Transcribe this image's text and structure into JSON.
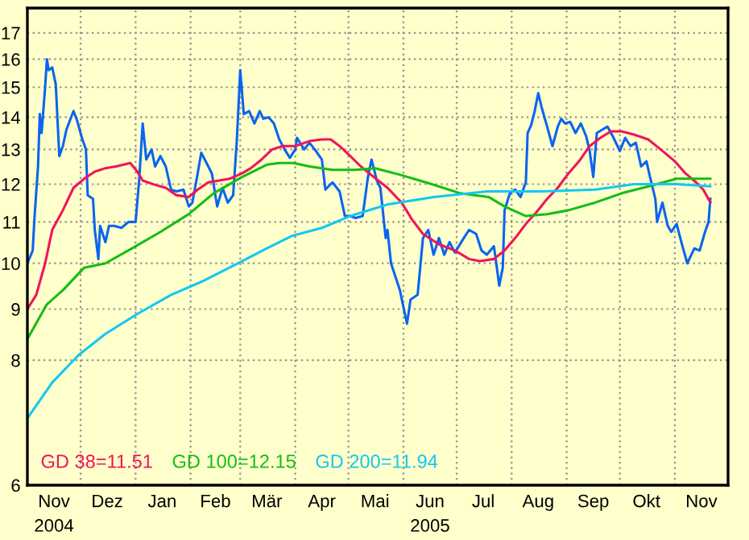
{
  "chart_data": {
    "type": "line",
    "log": "y",
    "ylim": [
      6,
      18
    ],
    "yticks": [
      6,
      8,
      9,
      10,
      11,
      12,
      13,
      14,
      15,
      16,
      17
    ],
    "xlim": [
      "2004-11-01",
      "2005-12-01"
    ],
    "xticks": [
      {
        "value": "2004-12-01",
        "label": null
      },
      {
        "value": "2005-01-01",
        "label": null
      },
      {
        "value": "2005-02-01",
        "label": null
      },
      {
        "value": "2005-03-01",
        "label": null
      },
      {
        "value": "2005-04-01",
        "label": null
      },
      {
        "value": "2005-05-01",
        "label": null
      },
      {
        "value": "2005-06-01",
        "label": null
      },
      {
        "value": "2005-07-01",
        "label": null
      },
      {
        "value": "2005-08-01",
        "label": null
      },
      {
        "value": "2005-09-01",
        "label": null
      },
      {
        "value": "2005-10-01",
        "label": null
      },
      {
        "value": "2005-11-01",
        "label": null
      },
      {
        "value": "2004-11-16",
        "label": "Nov\n2004"
      },
      {
        "value": "2004-12-16",
        "label": "Dez"
      },
      {
        "value": "2005-01-16",
        "label": "Jan"
      },
      {
        "value": "2005-02-15",
        "label": "Feb"
      },
      {
        "value": "2005-03-16",
        "label": "Mär"
      },
      {
        "value": "2005-04-16",
        "label": "Apr"
      },
      {
        "value": "2005-05-16",
        "label": "Mai"
      },
      {
        "value": "2005-06-16",
        "label": "Jun\n2005"
      },
      {
        "value": "2005-07-16",
        "label": "Jul"
      },
      {
        "value": "2005-08-16",
        "label": "Aug"
      },
      {
        "value": "2005-09-16",
        "label": "Sep"
      },
      {
        "value": "2005-10-16",
        "label": "Okt"
      },
      {
        "value": "2005-11-16",
        "label": "Nov"
      }
    ],
    "grid": true,
    "legend": "bottom left",
    "marker": "none",
    "line_style": "solid",
    "series": [
      {
        "color": "#0a64f0",
        "x": [
          "2004-11-01",
          "2004-11-04",
          "2004-11-05",
          "2004-11-07",
          "2004-11-08",
          "2004-11-09",
          "2004-11-11",
          "2004-11-12",
          "2004-11-13",
          "2004-11-15",
          "2004-11-17",
          "2004-11-19",
          "2004-11-21",
          "2004-11-23",
          "2004-11-25",
          "2004-11-27",
          "2004-11-29",
          "2004-12-02",
          "2004-12-04",
          "2004-12-05",
          "2004-12-08",
          "2004-12-09",
          "2004-12-11",
          "2004-12-12",
          "2004-12-15",
          "2004-12-17",
          "2004-12-20",
          "2004-12-24",
          "2004-12-28",
          "2005-01-01",
          "2005-01-03",
          "2005-01-05",
          "2005-01-07",
          "2005-01-10",
          "2005-01-12",
          "2005-01-15",
          "2005-01-18",
          "2005-01-21",
          "2005-01-24",
          "2005-01-28",
          "2005-01-31",
          "2005-02-02",
          "2005-02-05",
          "2005-02-07",
          "2005-02-10",
          "2005-02-13",
          "2005-02-16",
          "2005-02-19",
          "2005-02-22",
          "2005-02-25",
          "2005-02-27",
          "2005-03-01",
          "2005-03-03",
          "2005-03-06",
          "2005-03-09",
          "2005-03-12",
          "2005-03-14",
          "2005-03-17",
          "2005-03-20",
          "2005-03-23",
          "2005-03-26",
          "2005-03-29",
          "2005-04-01",
          "2005-04-02",
          "2005-04-06",
          "2005-04-09",
          "2005-04-12",
          "2005-04-16",
          "2005-04-18",
          "2005-04-22",
          "2005-04-26",
          "2005-04-29",
          "2005-05-02",
          "2005-05-05",
          "2005-05-09",
          "2005-05-12",
          "2005-05-14",
          "2005-05-17",
          "2005-05-19",
          "2005-05-22",
          "2005-05-23",
          "2005-05-25",
          "2005-05-30",
          "2005-06-03",
          "2005-06-05",
          "2005-06-09",
          "2005-06-12",
          "2005-06-15",
          "2005-06-18",
          "2005-06-21",
          "2005-06-24",
          "2005-06-27",
          "2005-06-30",
          "2005-07-05",
          "2005-07-08",
          "2005-07-12",
          "2005-07-15",
          "2005-07-18",
          "2005-07-22",
          "2005-07-23",
          "2005-07-25",
          "2005-07-27",
          "2005-07-28",
          "2005-07-31",
          "2005-08-03",
          "2005-08-06",
          "2005-08-09",
          "2005-08-10",
          "2005-08-12",
          "2005-08-14",
          "2005-08-16",
          "2005-08-18",
          "2005-08-21",
          "2005-08-24",
          "2005-08-27",
          "2005-08-29",
          "2005-08-31",
          "2005-09-03",
          "2005-09-06",
          "2005-09-09",
          "2005-09-12",
          "2005-09-14",
          "2005-09-16",
          "2005-09-18",
          "2005-09-21",
          "2005-09-24",
          "2005-09-27",
          "2005-10-01",
          "2005-10-04",
          "2005-10-07",
          "2005-10-10",
          "2005-10-13",
          "2005-10-16",
          "2005-10-18",
          "2005-10-21",
          "2005-10-22",
          "2005-10-25",
          "2005-10-28",
          "2005-10-30",
          "2005-11-02",
          "2005-11-05",
          "2005-11-07",
          "2005-11-08",
          "2005-11-12",
          "2005-11-15",
          "2005-11-18",
          "2005-11-20",
          "2005-11-21"
        ],
        "values": [
          10.0,
          10.3,
          11.1,
          12.5,
          14.1,
          13.5,
          15.0,
          16.0,
          15.6,
          15.7,
          15.1,
          12.8,
          13.1,
          13.6,
          13.9,
          14.2,
          13.9,
          13.3,
          13.0,
          11.7,
          11.6,
          10.8,
          10.1,
          10.9,
          10.5,
          10.9,
          10.9,
          10.85,
          11.0,
          11.0,
          12.1,
          13.8,
          12.7,
          13.0,
          12.5,
          12.8,
          12.5,
          11.85,
          11.8,
          11.85,
          11.4,
          11.5,
          12.3,
          12.9,
          12.6,
          12.3,
          11.4,
          11.9,
          11.5,
          11.7,
          13.2,
          15.6,
          14.1,
          14.2,
          13.8,
          14.2,
          13.95,
          14.0,
          13.8,
          13.3,
          13.0,
          12.75,
          13.0,
          13.35,
          13.0,
          13.2,
          13.0,
          12.7,
          11.85,
          12.05,
          11.8,
          11.15,
          11.15,
          11.1,
          11.15,
          12.2,
          12.7,
          12.1,
          11.9,
          10.6,
          10.8,
          10.0,
          9.4,
          8.7,
          9.2,
          9.3,
          10.6,
          10.8,
          10.2,
          10.6,
          10.2,
          10.5,
          10.25,
          10.6,
          10.8,
          10.7,
          10.3,
          10.2,
          10.4,
          10.1,
          9.5,
          9.9,
          11.3,
          11.75,
          11.85,
          11.65,
          12.05,
          13.5,
          13.75,
          14.2,
          14.8,
          14.3,
          13.7,
          13.1,
          13.7,
          13.95,
          13.8,
          13.85,
          13.5,
          13.8,
          13.4,
          12.95,
          12.2,
          13.5,
          13.6,
          13.7,
          13.4,
          12.95,
          13.35,
          13.1,
          13.2,
          12.5,
          12.65,
          12.2,
          11.6,
          11.0,
          11.5,
          10.9,
          10.75,
          10.95,
          10.45,
          10.15,
          10.0,
          10.35,
          10.3,
          10.75,
          11.0,
          11.6
        ]
      },
      {
        "name": "GD 38=11.51",
        "color": "#f0145a",
        "x": [
          "2004-11-01",
          "2004-11-06",
          "2004-11-11",
          "2004-11-15",
          "2004-11-21",
          "2004-11-27",
          "2004-12-03",
          "2004-12-09",
          "2004-12-15",
          "2004-12-21",
          "2004-12-29",
          "2005-01-02",
          "2005-01-05",
          "2005-01-12",
          "2005-01-18",
          "2005-01-24",
          "2005-01-31",
          "2005-02-05",
          "2005-02-11",
          "2005-02-17",
          "2005-02-23",
          "2005-03-02",
          "2005-03-07",
          "2005-03-13",
          "2005-03-19",
          "2005-03-25",
          "2005-04-01",
          "2005-04-09",
          "2005-04-16",
          "2005-04-21",
          "2005-04-26",
          "2005-05-02",
          "2005-05-08",
          "2005-05-14",
          "2005-05-23",
          "2005-05-31",
          "2005-06-06",
          "2005-06-12",
          "2005-06-21",
          "2005-06-30",
          "2005-07-08",
          "2005-07-14",
          "2005-07-22",
          "2005-07-28",
          "2005-08-03",
          "2005-08-09",
          "2005-08-15",
          "2005-08-21",
          "2005-08-27",
          "2005-09-02",
          "2005-09-08",
          "2005-09-14",
          "2005-09-20",
          "2005-09-26",
          "2005-10-02",
          "2005-10-09",
          "2005-10-17",
          "2005-10-24",
          "2005-11-01",
          "2005-11-07",
          "2005-11-13",
          "2005-11-17",
          "2005-11-21"
        ],
        "values": [
          9.0,
          9.3,
          10.0,
          10.8,
          11.3,
          11.9,
          12.15,
          12.35,
          12.45,
          12.5,
          12.6,
          12.35,
          12.1,
          11.98,
          11.9,
          11.7,
          11.65,
          11.85,
          12.05,
          12.1,
          12.15,
          12.3,
          12.45,
          12.7,
          13.0,
          13.1,
          13.1,
          13.25,
          13.3,
          13.3,
          13.1,
          12.8,
          12.5,
          12.25,
          11.9,
          11.5,
          11.05,
          10.7,
          10.45,
          10.3,
          10.1,
          10.05,
          10.1,
          10.3,
          10.6,
          10.95,
          11.25,
          11.6,
          11.9,
          12.3,
          12.65,
          13.1,
          13.35,
          13.55,
          13.55,
          13.45,
          13.3,
          13.0,
          12.65,
          12.3,
          12.05,
          11.85,
          11.51
        ]
      },
      {
        "name": "GD 100=12.15",
        "color": "#14be14",
        "x": [
          "2004-11-01",
          "2004-11-12",
          "2004-11-21",
          "2004-12-03",
          "2004-12-15",
          "2004-12-30",
          "2005-01-15",
          "2005-01-31",
          "2005-02-14",
          "2005-03-02",
          "2005-03-16",
          "2005-03-23",
          "2005-03-31",
          "2005-04-09",
          "2005-04-22",
          "2005-05-05",
          "2005-05-16",
          "2005-05-31",
          "2005-06-17",
          "2005-07-03",
          "2005-07-19",
          "2005-07-28",
          "2005-08-09",
          "2005-08-21",
          "2005-09-02",
          "2005-09-17",
          "2005-10-02",
          "2005-10-18",
          "2005-11-02",
          "2005-11-21"
        ],
        "values": [
          8.4,
          9.1,
          9.4,
          9.9,
          10.0,
          10.35,
          10.75,
          11.2,
          11.75,
          12.2,
          12.55,
          12.6,
          12.6,
          12.5,
          12.4,
          12.4,
          12.45,
          12.25,
          12.0,
          11.75,
          11.65,
          11.4,
          11.15,
          11.2,
          11.3,
          11.5,
          11.75,
          11.95,
          12.15,
          12.15
        ]
      },
      {
        "name": "GD 200=11.94",
        "color": "#14c8f0",
        "x": [
          "2004-11-01",
          "2004-11-15",
          "2004-11-30",
          "2004-12-15",
          "2005-01-02",
          "2005-01-21",
          "2005-02-08",
          "2005-03-02",
          "2005-03-16",
          "2005-03-30",
          "2005-04-16",
          "2005-05-02",
          "2005-05-16",
          "2005-05-23",
          "2005-06-18",
          "2005-07-18",
          "2005-08-18",
          "2005-09-17",
          "2005-10-09",
          "2005-11-02",
          "2005-11-21"
        ],
        "values": [
          7.0,
          7.6,
          8.1,
          8.5,
          8.9,
          9.3,
          9.6,
          10.05,
          10.35,
          10.65,
          10.85,
          11.15,
          11.35,
          11.45,
          11.65,
          11.8,
          11.8,
          11.85,
          12.0,
          12.0,
          11.94
        ]
      }
    ]
  }
}
